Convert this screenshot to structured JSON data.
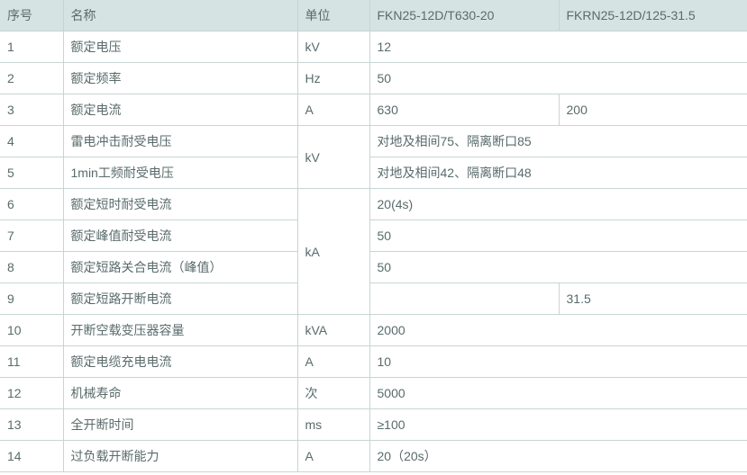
{
  "table": {
    "header_bg": "#d6e3e3",
    "border_color": "#c8d4d4",
    "text_color": "#5a6b6b",
    "font_size": 14,
    "columns": {
      "seq": "序号",
      "name": "名称",
      "unit": "单位",
      "v1": "FKN25-12D/T630-20",
      "v2": "FKRN25-12D/125-31.5"
    },
    "rows": {
      "r1": {
        "seq": "1",
        "name": "额定电压",
        "unit": "kV",
        "v1": "12"
      },
      "r2": {
        "seq": "2",
        "name": "额定频率",
        "unit": "Hz",
        "v1": "50"
      },
      "r3": {
        "seq": "3",
        "name": "额定电流",
        "unit": "A",
        "v1": "630",
        "v2": "200"
      },
      "r4": {
        "seq": "4",
        "name": "雷电冲击耐受电压",
        "v1": "对地及相间75、隔离断口85"
      },
      "r5": {
        "seq": "5",
        "name": "1min工频耐受电压",
        "v1": "对地及相间42、隔离断口48"
      },
      "unit_kv": "kV",
      "r6": {
        "seq": "6",
        "name": "额定短时耐受电流",
        "v1": "20(4s)"
      },
      "r7": {
        "seq": "7",
        "name": "额定峰值耐受电流",
        "v1": "50"
      },
      "r8": {
        "seq": "8",
        "name": "额定短路关合电流（峰值）",
        "v1": "50"
      },
      "r9": {
        "seq": "9",
        "name": "额定短路开断电流",
        "v2": "31.5"
      },
      "unit_ka": "kA",
      "r10": {
        "seq": "10",
        "name": "开断空载变压器容量",
        "unit": "kVA",
        "v1": "2000"
      },
      "r11": {
        "seq": "11",
        "name": "额定电缆充电电流",
        "unit": "A",
        "v1": "10"
      },
      "r12": {
        "seq": "12",
        "name": "机械寿命",
        "unit": "次",
        "v1": "5000"
      },
      "r13": {
        "seq": "13",
        "name": "全开断时间",
        "unit": "ms",
        "v1": "≥100"
      },
      "r14": {
        "seq": "14",
        "name": "过负载开断能力",
        "unit": "A",
        "v1": "20（20s）"
      }
    }
  }
}
